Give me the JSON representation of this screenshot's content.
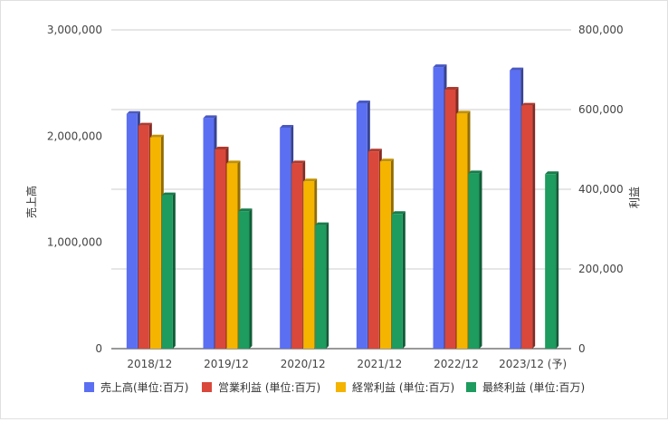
{
  "chart_data": {
    "type": "bar",
    "categories": [
      "2018/12",
      "2019/12",
      "2020/12",
      "2021/12",
      "2022/12",
      "2023/12 (予)"
    ],
    "series": [
      {
        "name": "売上高(単位:百万)",
        "axis": "left",
        "color": "#5b6ff2",
        "values": [
          2210000,
          2170000,
          2080000,
          2310000,
          2650000,
          2620000
        ]
      },
      {
        "name": "営業利益 (単位:百万)",
        "axis": "right",
        "color": "#d9483b",
        "values": [
          560000,
          500000,
          465000,
          495000,
          650000,
          610000
        ]
      },
      {
        "name": "経常利益 (単位:百万)",
        "axis": "right",
        "color": "#f4b400",
        "values": [
          530000,
          465000,
          420000,
          470000,
          590000,
          null
        ]
      },
      {
        "name": "最終利益 (単位:百万)",
        "axis": "right",
        "color": "#1e9b5e",
        "values": [
          385000,
          345000,
          310000,
          338000,
          440000,
          438000
        ]
      }
    ],
    "left_axis": {
      "title": "売上高",
      "min": 0,
      "max": 3000000,
      "ticks": [
        "0",
        "1,000,000",
        "2,000,000",
        "3,000,000"
      ]
    },
    "right_axis": {
      "title": "利益",
      "min": 0,
      "max": 800000,
      "ticks": [
        "0",
        "200,000",
        "400,000",
        "600,000",
        "800,000"
      ]
    },
    "grid": true,
    "legend_position": "bottom"
  }
}
